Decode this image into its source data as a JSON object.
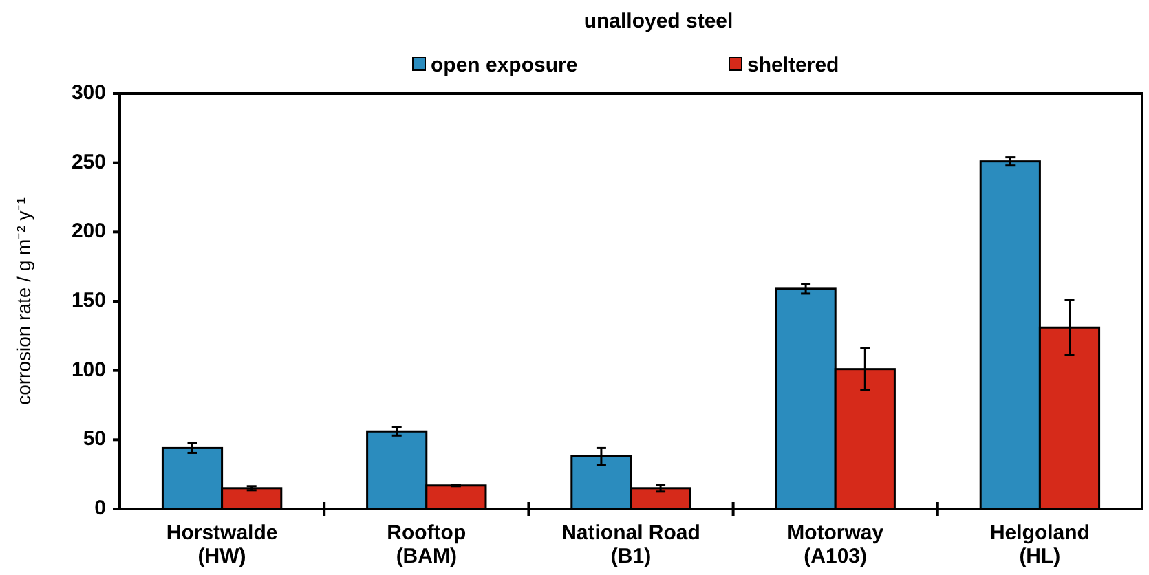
{
  "chart_data": {
    "type": "bar",
    "title": "unalloyed steel",
    "ylabel": "corrosion rate / g m⁻² y⁻¹",
    "categories": [
      "Horstwalde\n(HW)",
      "Rooftop\n(BAM)",
      "National Road\n(B1)",
      "Motorway\n(A103)",
      "Helgoland\n(HL)"
    ],
    "series": [
      {
        "name": "open exposure",
        "color": "#2b8cbe",
        "values": [
          44,
          56,
          38,
          159,
          251
        ],
        "errors": [
          3.5,
          3,
          6,
          3.5,
          3
        ]
      },
      {
        "name": "sheltered",
        "color": "#d62a1a",
        "values": [
          15,
          17,
          15,
          101,
          131
        ],
        "errors": [
          1.5,
          0.5,
          2.5,
          15,
          20
        ]
      }
    ],
    "ylim": [
      0,
      300
    ],
    "yticks": [
      0,
      50,
      100,
      150,
      200,
      250,
      300
    ],
    "grid": false,
    "legend": "top"
  }
}
